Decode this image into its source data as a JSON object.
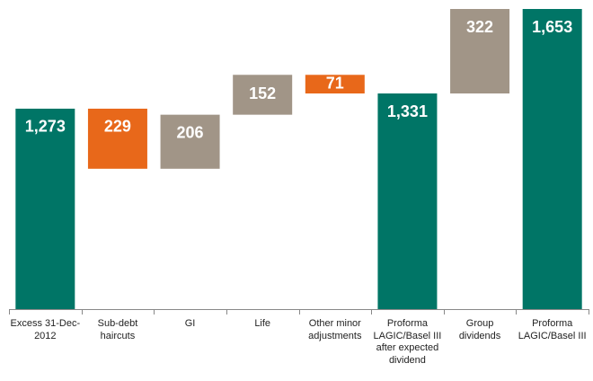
{
  "chart_data": {
    "type": "waterfall",
    "categories": [
      "Excess 31-Dec-2012",
      "Sub-debt haircuts",
      "GI",
      "Life",
      "Other minor adjustments",
      "Proforma LAGIC/Basel III after expected dividend",
      "Group dividends",
      "Proforma LAGIC/Basel III"
    ],
    "values": [
      1273,
      229,
      206,
      152,
      71,
      1331,
      322,
      1653
    ],
    "value_labels": [
      "1,273",
      "229",
      "206",
      "152",
      "71",
      "1,331",
      "322",
      "1,653"
    ],
    "measure": [
      "total",
      "decrease",
      "increase",
      "increase",
      "decrease",
      "total",
      "increase",
      "total"
    ],
    "colors": {
      "total": "#007566",
      "decrease": "#e8681a",
      "increase": "#a19587"
    },
    "ylim": [
      509,
      1653
    ]
  }
}
